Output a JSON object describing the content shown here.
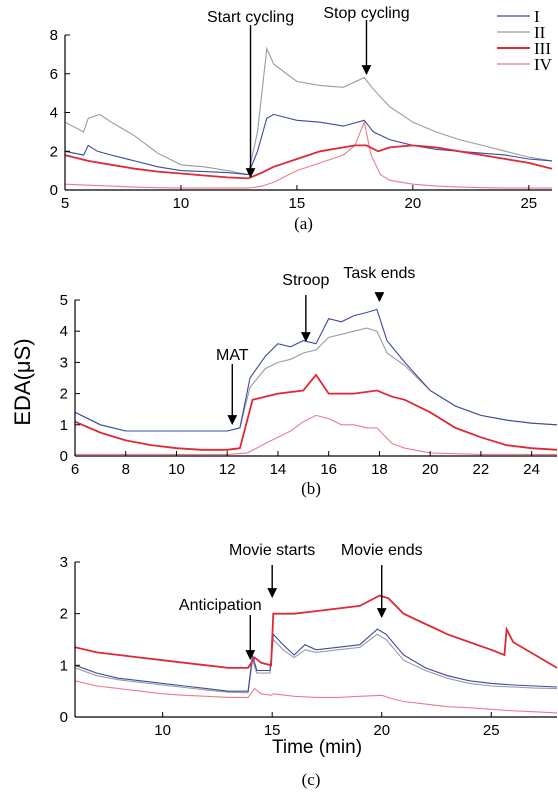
{
  "figure": {
    "ylabel": "EDA(μS)",
    "xlabel": "Time (min)",
    "legend": {
      "placement": "top-right",
      "entries": [
        "I",
        "II",
        "III",
        "IV"
      ]
    },
    "colors": {
      "I": "#3b4c9c",
      "II": "#9a9aa6",
      "III": "#dd2a36",
      "IV": "#eb7d8a"
    }
  },
  "chart_data": [
    {
      "type": "line",
      "caption": "(a)",
      "xlim": [
        5,
        26
      ],
      "ylim": [
        0,
        8
      ],
      "xticks": [
        5,
        10,
        15,
        20,
        25
      ],
      "yticks": [
        0,
        2,
        4,
        6,
        8
      ],
      "annotations": [
        {
          "text": "Start cycling",
          "x": 13.0
        },
        {
          "text": "Stop cycling",
          "x": 18.0
        }
      ],
      "series": [
        {
          "name": "I",
          "x": [
            5,
            5.8,
            6.0,
            6.4,
            7,
            8,
            9,
            10,
            11,
            12,
            12.9,
            13.3,
            13.7,
            14,
            15,
            16,
            17,
            17.9,
            18.3,
            19,
            20,
            21,
            22,
            23,
            24,
            25,
            26
          ],
          "y": [
            2.0,
            1.8,
            2.3,
            2.0,
            1.8,
            1.5,
            1.2,
            1.0,
            0.95,
            0.9,
            0.8,
            2.0,
            3.7,
            3.9,
            3.6,
            3.5,
            3.3,
            3.6,
            3.0,
            2.6,
            2.3,
            2.1,
            2.0,
            1.9,
            1.8,
            1.6,
            1.5
          ]
        },
        {
          "name": "II",
          "x": [
            5,
            5.8,
            6.0,
            6.5,
            7,
            8,
            9,
            10,
            11,
            12,
            12.9,
            13.3,
            13.7,
            14,
            15,
            16,
            17,
            17.9,
            18.3,
            19,
            20,
            21,
            22,
            23,
            24,
            25,
            26
          ],
          "y": [
            3.5,
            3.0,
            3.7,
            3.9,
            3.5,
            2.8,
            1.9,
            1.3,
            1.2,
            1.0,
            0.8,
            3.0,
            7.3,
            6.5,
            5.6,
            5.4,
            5.3,
            5.8,
            5.2,
            4.3,
            3.5,
            3.0,
            2.6,
            2.3,
            2.0,
            1.7,
            1.5
          ]
        },
        {
          "name": "III",
          "x": [
            5,
            6,
            7,
            8,
            9,
            10,
            11,
            12,
            12.9,
            13.5,
            14,
            15,
            16,
            17,
            17.5,
            18,
            18.5,
            19,
            20,
            21,
            22,
            23,
            24,
            25,
            26
          ],
          "y": [
            1.8,
            1.5,
            1.3,
            1.1,
            0.95,
            0.85,
            0.75,
            0.65,
            0.6,
            0.9,
            1.2,
            1.6,
            2.0,
            2.2,
            2.3,
            2.3,
            2.0,
            2.2,
            2.3,
            2.2,
            2.0,
            1.8,
            1.6,
            1.4,
            1.1
          ]
        },
        {
          "name": "IV",
          "x": [
            5,
            6,
            7,
            8,
            9,
            10,
            11,
            12,
            12.9,
            13.5,
            14,
            14.5,
            15,
            16,
            17,
            17.5,
            17.9,
            18.2,
            18.6,
            19,
            20,
            21,
            22,
            23,
            24,
            25,
            26
          ],
          "y": [
            0.3,
            0.25,
            0.2,
            0.15,
            0.12,
            0.1,
            0.1,
            0.1,
            0.1,
            0.2,
            0.4,
            0.7,
            1.0,
            1.4,
            1.8,
            2.3,
            3.5,
            1.8,
            0.8,
            0.5,
            0.3,
            0.2,
            0.15,
            0.12,
            0.1,
            0.1,
            0.1
          ]
        }
      ]
    },
    {
      "type": "line",
      "caption": "(b)",
      "xlim": [
        6,
        25
      ],
      "ylim": [
        0,
        5
      ],
      "xticks": [
        6,
        8,
        10,
        12,
        14,
        16,
        18,
        20,
        22,
        24
      ],
      "yticks": [
        0,
        1,
        2,
        3,
        4,
        5
      ],
      "annotations": [
        {
          "text": "MAT",
          "x": 12.2
        },
        {
          "text": "Stroop",
          "x": 15.1
        },
        {
          "text": "Task ends",
          "x": 18.0
        }
      ],
      "series": [
        {
          "name": "I",
          "x": [
            6,
            7,
            8,
            9,
            10,
            11,
            12,
            12.5,
            12.9,
            13.5,
            14,
            14.5,
            15,
            15.5,
            16,
            16.5,
            17,
            17.5,
            17.9,
            18.3,
            19,
            20,
            21,
            22,
            23,
            24,
            25
          ],
          "y": [
            1.4,
            1.0,
            0.8,
            0.8,
            0.8,
            0.8,
            0.8,
            0.9,
            2.5,
            3.2,
            3.6,
            3.5,
            3.7,
            3.6,
            4.4,
            4.3,
            4.5,
            4.6,
            4.7,
            3.7,
            3.0,
            2.1,
            1.6,
            1.3,
            1.15,
            1.05,
            1.0
          ]
        },
        {
          "name": "II",
          "x": [
            6,
            7,
            8,
            9,
            10,
            11,
            12,
            12.5,
            12.9,
            13.5,
            14,
            14.5,
            15,
            15.5,
            16,
            16.5,
            17,
            17.5,
            17.9,
            18.3,
            19,
            20,
            21,
            22,
            23,
            24,
            25
          ],
          "y": [
            1.4,
            1.0,
            0.8,
            0.8,
            0.8,
            0.8,
            0.8,
            0.9,
            2.2,
            2.8,
            3.0,
            3.1,
            3.3,
            3.4,
            3.8,
            3.9,
            4.0,
            4.1,
            4.0,
            3.3,
            2.9,
            2.1,
            1.6,
            1.3,
            1.15,
            1.05,
            1.0
          ]
        },
        {
          "name": "III",
          "x": [
            6,
            7,
            8,
            9,
            10,
            11,
            12,
            12.5,
            13,
            14,
            15,
            15.5,
            16,
            17,
            17.9,
            18.5,
            19,
            20,
            21,
            22,
            23,
            24,
            25
          ],
          "y": [
            1.1,
            0.75,
            0.5,
            0.35,
            0.25,
            0.2,
            0.2,
            0.25,
            1.8,
            2.0,
            2.1,
            2.6,
            2.0,
            2.0,
            2.1,
            1.9,
            1.8,
            1.4,
            0.9,
            0.6,
            0.35,
            0.25,
            0.2
          ]
        },
        {
          "name": "IV",
          "x": [
            6,
            8,
            10,
            12,
            12.8,
            13.5,
            14,
            14.5,
            15,
            15.5,
            16,
            16.5,
            17,
            17.5,
            17.9,
            18.5,
            19,
            20,
            22,
            25
          ],
          "y": [
            0.05,
            0.05,
            0.05,
            0.05,
            0.1,
            0.4,
            0.6,
            0.8,
            1.1,
            1.3,
            1.2,
            1.0,
            1.0,
            0.9,
            0.9,
            0.4,
            0.25,
            0.1,
            0.05,
            0.05
          ]
        }
      ]
    },
    {
      "type": "line",
      "caption": "(c)",
      "xlabel": "Time (min)",
      "xlim": [
        6,
        28
      ],
      "ylim": [
        0,
        3
      ],
      "xticks": [
        10,
        15,
        20,
        25
      ],
      "yticks": [
        0,
        1,
        2,
        3
      ],
      "annotations": [
        {
          "text": "Anticipation",
          "x": 14.0
        },
        {
          "text": "Movie starts",
          "x": 15.0
        },
        {
          "text": "Movie ends",
          "x": 20.0
        }
      ],
      "series": [
        {
          "name": "I",
          "x": [
            6,
            7,
            8,
            9,
            10,
            11,
            12,
            13,
            13.9,
            14.1,
            14.3,
            14.9,
            15.05,
            15.5,
            16,
            16.5,
            17,
            18,
            19,
            19.8,
            20.2,
            21,
            22,
            23,
            24,
            25,
            26,
            27,
            28
          ],
          "y": [
            1.0,
            0.85,
            0.75,
            0.7,
            0.65,
            0.6,
            0.55,
            0.5,
            0.5,
            1.2,
            0.9,
            0.9,
            1.6,
            1.4,
            1.2,
            1.4,
            1.3,
            1.35,
            1.4,
            1.7,
            1.6,
            1.2,
            0.95,
            0.8,
            0.7,
            0.65,
            0.62,
            0.6,
            0.58
          ]
        },
        {
          "name": "II",
          "x": [
            6,
            7,
            8,
            9,
            10,
            11,
            12,
            13,
            13.9,
            14.1,
            14.3,
            14.9,
            15.05,
            15.5,
            16,
            16.5,
            17,
            18,
            19,
            19.8,
            20.2,
            21,
            22,
            23,
            24,
            25,
            26,
            27,
            28
          ],
          "y": [
            0.95,
            0.8,
            0.72,
            0.67,
            0.62,
            0.57,
            0.52,
            0.48,
            0.47,
            1.1,
            0.85,
            0.85,
            1.5,
            1.3,
            1.15,
            1.3,
            1.25,
            1.3,
            1.35,
            1.6,
            1.5,
            1.1,
            0.9,
            0.75,
            0.65,
            0.6,
            0.58,
            0.56,
            0.55
          ]
        },
        {
          "name": "III",
          "x": [
            6,
            7,
            8,
            9,
            10,
            11,
            12,
            13,
            13.9,
            14.2,
            14.5,
            14.95,
            15.05,
            16,
            17,
            18,
            19,
            19.9,
            20.3,
            21,
            22,
            23,
            24,
            25,
            25.6,
            25.7,
            26,
            27,
            28
          ],
          "y": [
            1.35,
            1.25,
            1.2,
            1.15,
            1.1,
            1.05,
            1.0,
            0.95,
            0.95,
            1.15,
            1.05,
            1.0,
            2.0,
            2.0,
            2.05,
            2.1,
            2.15,
            2.35,
            2.3,
            2.0,
            1.8,
            1.6,
            1.45,
            1.3,
            1.2,
            1.7,
            1.45,
            1.2,
            0.95
          ]
        },
        {
          "name": "IV",
          "x": [
            6,
            7,
            8,
            9,
            10,
            11,
            12,
            13,
            13.9,
            14.2,
            14.5,
            14.95,
            15.05,
            16,
            17,
            18,
            19,
            20,
            20.5,
            21,
            22,
            23,
            24,
            25,
            26,
            27,
            28
          ],
          "y": [
            0.7,
            0.6,
            0.55,
            0.5,
            0.45,
            0.42,
            0.4,
            0.38,
            0.38,
            0.55,
            0.45,
            0.42,
            0.45,
            0.4,
            0.38,
            0.38,
            0.4,
            0.42,
            0.35,
            0.3,
            0.25,
            0.2,
            0.18,
            0.15,
            0.12,
            0.1,
            0.08
          ]
        }
      ]
    }
  ]
}
